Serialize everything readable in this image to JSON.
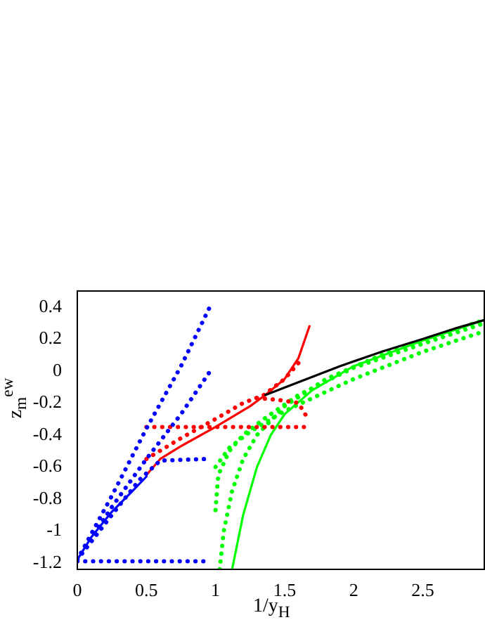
{
  "chart_data": {
    "type": "line",
    "xlabel": "1/y$_{H}$",
    "ylabel": "z$_{m}$$^{ew}$",
    "xlim": [
      0,
      2.95
    ],
    "ylim": [
      -1.24,
      0.5
    ],
    "xticks": [
      0,
      0.5,
      1,
      1.5,
      2,
      2.5
    ],
    "yticks": [
      -1.2,
      -1,
      -0.8,
      -0.6,
      -0.4,
      -0.2,
      0,
      0.2,
      0.4
    ],
    "grid": false,
    "legend": false,
    "marker": "none",
    "series": [
      {
        "color": "#000000",
        "line_style": "solid",
        "x": [
          1.36,
          1.6,
          1.9,
          2.2,
          2.5,
          2.75,
          2.95
        ],
        "values": [
          -0.15,
          -0.07,
          0.03,
          0.12,
          0.2,
          0.27,
          0.32
        ]
      },
      {
        "color": "#0000ff",
        "line_style": "dotted",
        "x": [
          0,
          0.25,
          0.5,
          0.75,
          0.97
        ],
        "values": [
          -1.18,
          -0.78,
          -0.36,
          0.03,
          0.42
        ]
      },
      {
        "color": "#0000ff",
        "line_style": "dotted",
        "x": [
          0,
          0.25,
          0.5,
          0.75,
          0.97
        ],
        "values": [
          -1.18,
          -0.85,
          -0.55,
          -0.27,
          0.01
        ]
      },
      {
        "color": "#0000ff",
        "line_style": "dotted",
        "x": [
          0,
          0.25,
          0.45,
          0.6,
          0.93
        ],
        "values": [
          -1.18,
          -0.9,
          -0.68,
          -0.56,
          -0.55
        ]
      },
      {
        "color": "#0000ff",
        "line_style": "dotted",
        "x": [
          0,
          0.95
        ],
        "values": [
          -1.19,
          -1.19
        ]
      },
      {
        "color": "#0000ff",
        "line_style": "solid",
        "x": [
          0,
          0.1,
          0.25,
          0.4,
          0.5
        ],
        "values": [
          -1.18,
          -1.04,
          -0.88,
          -0.75,
          -0.66
        ]
      },
      {
        "color": "#ff0000",
        "line_style": "solid",
        "x": [
          0.5,
          0.6,
          0.75,
          1,
          1.25,
          1.36,
          1.5,
          1.6,
          1.68
        ],
        "values": [
          -0.65,
          -0.55,
          -0.47,
          -0.35,
          -0.22,
          -0.15,
          -0.05,
          0.08,
          0.28
        ]
      },
      {
        "color": "#ff0000",
        "line_style": "dotted",
        "x": [
          0.5,
          1.64
        ],
        "values": [
          -0.35,
          -0.35
        ]
      },
      {
        "color": "#ff0000",
        "line_style": "dotted",
        "x": [
          0.5,
          0.75,
          1,
          1.2,
          1.35,
          1.5,
          1.6
        ],
        "values": [
          -0.55,
          -0.42,
          -0.3,
          -0.2,
          -0.15,
          -0.05,
          0.05
        ]
      },
      {
        "color": "#ff0000",
        "line_style": "dotted",
        "x": [
          1.3,
          1.45,
          1.6,
          1.67
        ],
        "values": [
          -0.17,
          -0.18,
          -0.2,
          -0.3
        ]
      },
      {
        "color": "#00ff00",
        "line_style": "solid",
        "x": [
          1.12,
          1.2,
          1.3,
          1.4,
          1.5,
          1.7,
          2,
          2.5,
          2.95
        ],
        "values": [
          -1.24,
          -0.9,
          -0.6,
          -0.4,
          -0.27,
          -0.12,
          0.03,
          0.19,
          0.32
        ]
      },
      {
        "color": "#00ff00",
        "line_style": "dotted",
        "x": [
          1.03,
          1.06,
          1.12,
          1.2,
          1.3,
          1.5,
          1.8,
          2.2,
          2.6,
          2.95
        ],
        "values": [
          -1.24,
          -1,
          -0.75,
          -0.55,
          -0.4,
          -0.22,
          -0.05,
          0.1,
          0.22,
          0.32
        ]
      },
      {
        "color": "#00ff00",
        "line_style": "dotted",
        "x": [
          1,
          1.02,
          1.1,
          1.2,
          1.35,
          1.6,
          2,
          2.5,
          2.95
        ],
        "values": [
          -0.87,
          -0.65,
          -0.5,
          -0.4,
          -0.3,
          -0.15,
          0.02,
          0.17,
          0.3
        ]
      },
      {
        "color": "#00ff00",
        "line_style": "dotted",
        "x": [
          1,
          1.1,
          1.25,
          1.5,
          2,
          2.5,
          2.95
        ],
        "values": [
          -0.6,
          -0.48,
          -0.38,
          -0.25,
          -0.05,
          0.12,
          0.25
        ]
      }
    ]
  }
}
